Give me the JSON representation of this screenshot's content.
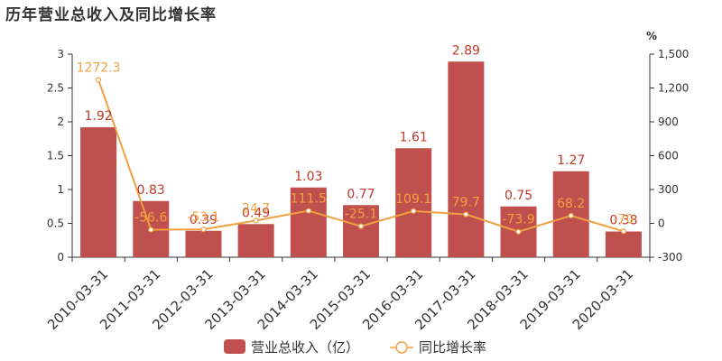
{
  "title": "历年营业总收入及同比增长率",
  "chart_data": {
    "type": "bar",
    "categories": [
      "2010-03-31",
      "2011-03-31",
      "2012-03-31",
      "2013-03-31",
      "2014-03-31",
      "2015-03-31",
      "2016-03-31",
      "2017-03-31",
      "2018-03-31",
      "2019-03-31",
      "2020-03-31"
    ],
    "series": [
      {
        "name": "营业总收入（亿）",
        "type": "bar",
        "axis": "left",
        "color": "#c0504d",
        "values": [
          1.92,
          0.83,
          0.39,
          0.49,
          1.03,
          0.77,
          1.61,
          2.89,
          0.75,
          1.27,
          0.38
        ],
        "labels": [
          "1.92",
          "0.83",
          "0.39",
          "0.49",
          "1.03",
          "0.77",
          "1.61",
          "2.89",
          "0.75",
          "1.27",
          "0.38"
        ]
      },
      {
        "name": "同比增长率",
        "type": "line",
        "axis": "right",
        "color": "#f0a040",
        "values": [
          1272.3,
          -56.6,
          -53.1,
          24.7,
          111.5,
          -25.1,
          109.1,
          79.7,
          -73.9,
          68.2,
          -70
        ],
        "labels": [
          "1272.3",
          "-56.6",
          "-53.1",
          "24.7",
          "111.5",
          "-25.1",
          "109.1",
          "79.7",
          "-73.9",
          "68.2",
          "-70"
        ]
      }
    ],
    "left_axis": {
      "ylim": [
        0,
        3
      ],
      "ticks": [
        "0",
        "0.5",
        "1",
        "1.5",
        "2",
        "2.5",
        "3"
      ]
    },
    "right_axis": {
      "unit": "%",
      "ylim": [
        -300,
        1500
      ],
      "ticks": [
        "-300",
        "0",
        "300",
        "600",
        "900",
        "1,200",
        "1,500"
      ]
    },
    "legend_position": "bottom-center",
    "grid": false
  }
}
